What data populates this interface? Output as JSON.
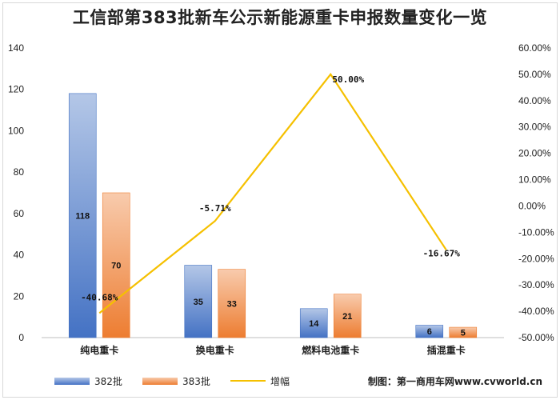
{
  "chart_data": {
    "type": "bar",
    "title": "工信部第383批新车公示新能源重卡申报数量变化一览",
    "categories": [
      "纯电重卡",
      "换电重卡",
      "燃料电池重卡",
      "插混重卡"
    ],
    "series": [
      {
        "name": "382批",
        "kind": "bar",
        "axis": "left",
        "values": [
          118,
          35,
          14,
          6
        ],
        "color": "#4472c4"
      },
      {
        "name": "383批",
        "kind": "bar",
        "axis": "left",
        "values": [
          70,
          33,
          21,
          5
        ],
        "color": "#ed7d31"
      },
      {
        "name": "增幅",
        "kind": "line",
        "axis": "right",
        "values": [
          -40.68,
          -5.71,
          50.0,
          -16.67
        ],
        "labels": [
          "-40.68%",
          "-5.71%",
          "50.00%",
          "-16.67%"
        ],
        "color": "#f5c000"
      }
    ],
    "y_left": {
      "min": 0,
      "max": 140,
      "step": 20,
      "ticks": [
        "0",
        "20",
        "40",
        "60",
        "80",
        "100",
        "120",
        "140"
      ]
    },
    "y_right": {
      "min": -50,
      "max": 60,
      "step": 10,
      "ticks": [
        "-50.00%",
        "-40.00%",
        "-30.00%",
        "-20.00%",
        "-10.00%",
        "0.00%",
        "10.00%",
        "20.00%",
        "30.00%",
        "40.00%",
        "50.00%",
        "60.00%"
      ]
    },
    "grid": false,
    "legend": "bottom-left"
  },
  "legend": {
    "items": [
      {
        "label": "382批",
        "color": "#4472c4"
      },
      {
        "label": "383批",
        "color": "#ed7d31"
      },
      {
        "label": "增幅",
        "color": "#f5c000"
      }
    ]
  },
  "credit": "制图：第一商用车网www.cvworld.cn"
}
